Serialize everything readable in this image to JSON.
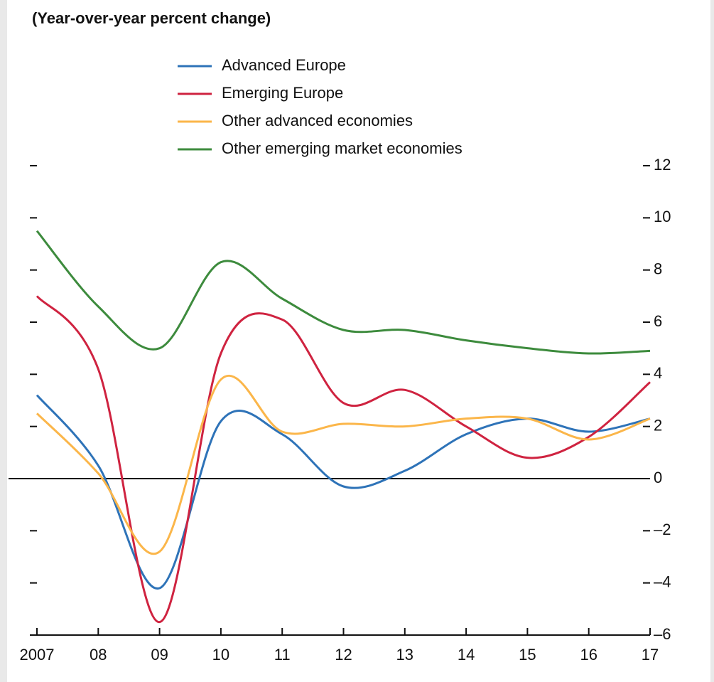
{
  "chart_data": {
    "type": "line",
    "title": "(Year-over-year percent change)",
    "categories": [
      "2007",
      "08",
      "09",
      "10",
      "11",
      "12",
      "13",
      "14",
      "15",
      "16",
      "17"
    ],
    "series": [
      {
        "name": "Advanced Europe",
        "color": "#2e73b8",
        "values": [
          3.2,
          0.5,
          -4.2,
          2.2,
          1.7,
          -0.3,
          0.3,
          1.7,
          2.3,
          1.8,
          2.3
        ]
      },
      {
        "name": "Emerging Europe",
        "color": "#cf2340",
        "values": [
          7.0,
          4.2,
          -5.5,
          4.8,
          6.1,
          2.9,
          3.4,
          2.0,
          0.8,
          1.6,
          3.7
        ]
      },
      {
        "name": "Other advanced economies",
        "color": "#fbb64a",
        "values": [
          2.5,
          0.2,
          -2.8,
          3.8,
          1.8,
          2.1,
          2.0,
          2.3,
          2.3,
          1.5,
          2.3
        ]
      },
      {
        "name": "Other emerging market economies",
        "color": "#3d8b3d",
        "values": [
          9.5,
          6.6,
          5.0,
          8.3,
          6.9,
          5.7,
          5.7,
          5.3,
          5.0,
          4.8,
          4.9
        ]
      }
    ],
    "ylim": [
      -6,
      12
    ],
    "yticks": [
      12,
      10,
      8,
      6,
      4,
      2,
      0,
      {
        "value": -2,
        "label": "–2"
      },
      {
        "value": -4,
        "label": "–4"
      },
      {
        "value": -6,
        "label": "–6"
      }
    ],
    "zero_line": true
  }
}
